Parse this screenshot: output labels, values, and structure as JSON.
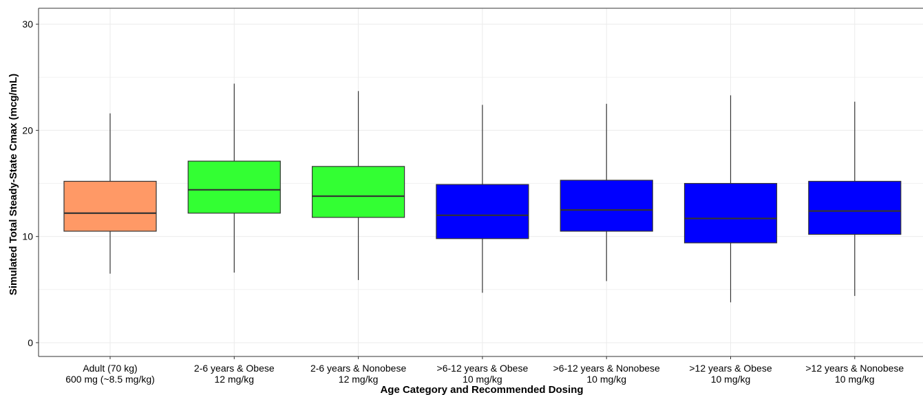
{
  "chart_data": {
    "type": "boxplot",
    "xlabel": "Age Category and Recommended Dosing",
    "ylabel": "Simulated Total Steady-State Cmax (mcg/mL)",
    "ylim": [
      -1.3,
      31.5
    ],
    "yticks": [
      0,
      10,
      20,
      30
    ],
    "grid": true,
    "colors": {
      "adult": "#FF9966",
      "age_2_6": "#33FF33",
      "age_over_6": "#0000FF",
      "median_line": "#333333",
      "whisker": "#333333",
      "grid": "#EBEBEB",
      "axis": "#333333"
    },
    "categories": [
      {
        "line1": "Adult (70 kg)",
        "line2": "600 mg (~8.5 mg/kg)",
        "min": 6.5,
        "q1": 10.5,
        "median": 12.2,
        "q3": 15.2,
        "max": 21.6,
        "color": "#FF9966"
      },
      {
        "line1": "2-6 years & Obese",
        "line2": "12 mg/kg",
        "min": 6.6,
        "q1": 12.2,
        "median": 14.4,
        "q3": 17.1,
        "max": 24.4,
        "color": "#33FF33"
      },
      {
        "line1": "2-6 years & Nonobese",
        "line2": "12 mg/kg",
        "min": 5.9,
        "q1": 11.8,
        "median": 13.8,
        "q3": 16.6,
        "max": 23.7,
        "color": "#33FF33"
      },
      {
        "line1": ">6-12 years & Obese",
        "line2": "10 mg/kg",
        "min": 4.7,
        "q1": 9.8,
        "median": 12.0,
        "q3": 14.9,
        "max": 22.4,
        "color": "#0000FF"
      },
      {
        "line1": ">6-12 years & Nonobese",
        "line2": "10 mg/kg",
        "min": 5.8,
        "q1": 10.5,
        "median": 12.5,
        "q3": 15.3,
        "max": 22.5,
        "color": "#0000FF"
      },
      {
        "line1": ">12 years & Obese",
        "line2": "10 mg/kg",
        "min": 3.8,
        "q1": 9.4,
        "median": 11.7,
        "q3": 15.0,
        "max": 23.3,
        "color": "#0000FF"
      },
      {
        "line1": ">12 years & Nonobese",
        "line2": "10 mg/kg",
        "min": 4.4,
        "q1": 10.2,
        "median": 12.4,
        "q3": 15.2,
        "max": 22.7,
        "color": "#0000FF"
      }
    ]
  }
}
